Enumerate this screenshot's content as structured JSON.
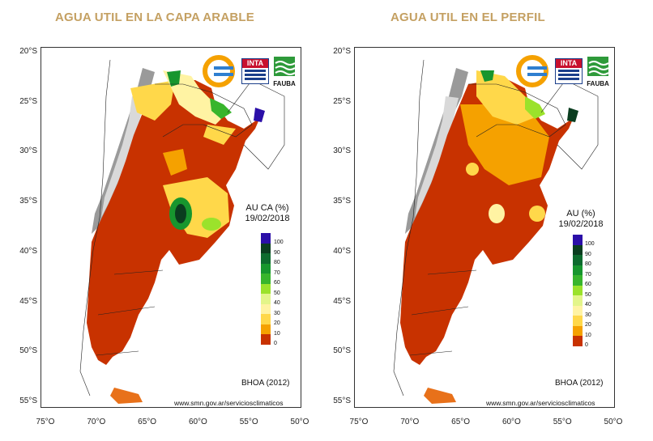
{
  "panels": [
    {
      "title": "AGUA UTIL EN LA CAPA ARABLE",
      "legend_title_line1": "AU CA (%)",
      "legend_title_line2": "19/02/2018"
    },
    {
      "title": "AGUA UTIL EN EL PERFIL",
      "legend_title_line1": "AU (%)",
      "legend_title_line2": "19/02/2018"
    }
  ],
  "lat_labels": [
    "20°S",
    "25°S",
    "30°S",
    "35°S",
    "40°S",
    "45°S",
    "50°S",
    "55°S"
  ],
  "lon_labels": [
    "75°O",
    "70°O",
    "65°O",
    "60°O",
    "55°O",
    "50°O"
  ],
  "legend": {
    "levels": [
      "100",
      "90",
      "80",
      "70",
      "60",
      "50",
      "40",
      "30",
      "20",
      "10",
      "0"
    ],
    "colors": [
      "#2b0fa8",
      "#0a3d1f",
      "#0d6b2e",
      "#17962e",
      "#38b52c",
      "#9be22b",
      "#e3f58a",
      "#fff3a3",
      "#ffd84a",
      "#f5a100",
      "#c83200"
    ]
  },
  "logos": {
    "inta": "INTA",
    "fauba": "FAUBA"
  },
  "footer": {
    "bhoa": "BHOA (2012)",
    "url": "www.smn.gov.ar/serviciosclimaticos"
  },
  "colors": {
    "title": "#c4a062",
    "dry": "#c83200",
    "orange": "#e8711a",
    "terrain": "#9a9a9a"
  }
}
